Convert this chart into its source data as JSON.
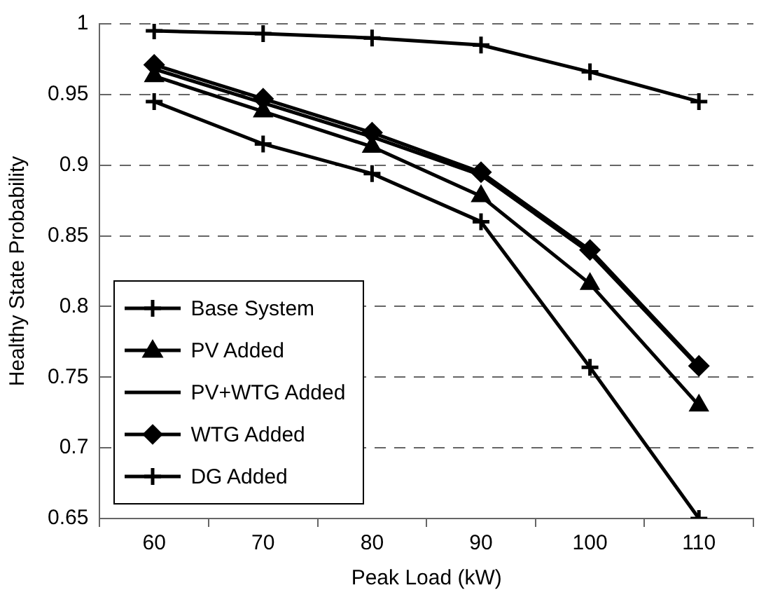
{
  "chart_data": {
    "type": "line",
    "xlabel": "Peak Load (kW)",
    "ylabel": "Healthy State Probability",
    "categories": [
      "60",
      "70",
      "80",
      "90",
      "100",
      "110"
    ],
    "series": [
      {
        "name": "Base System",
        "color": "#000000",
        "marker": "cross",
        "values": [
          0.945,
          0.915,
          0.894,
          0.86,
          0.757,
          0.65
        ]
      },
      {
        "name": "PV Added",
        "color": "#000000",
        "marker": "triangle",
        "values": [
          0.963,
          0.938,
          0.913,
          0.878,
          0.816,
          0.73
        ]
      },
      {
        "name": "PV+WTG Added",
        "color": "#000000",
        "marker": "none",
        "values": [
          0.968,
          0.944,
          0.92,
          0.893,
          0.838,
          0.757
        ]
      },
      {
        "name": "WTG Added",
        "color": "#000000",
        "marker": "diamond",
        "values": [
          0.971,
          0.947,
          0.923,
          0.895,
          0.84,
          0.758
        ]
      },
      {
        "name": "DG Added",
        "color": "#000000",
        "marker": "cross",
        "values": [
          0.995,
          0.993,
          0.99,
          0.985,
          0.966,
          0.945
        ]
      }
    ],
    "ylim": [
      0.65,
      1
    ],
    "yticks": [
      0.65,
      {
        "value": 0.7,
        "label": "0.7"
      },
      0.75,
      0.8,
      0.85,
      {
        "value": 0.9,
        "label": "0.9"
      },
      0.95,
      1
    ],
    "grid": "y",
    "legend": "bottom left",
    "line_style": "solid"
  }
}
